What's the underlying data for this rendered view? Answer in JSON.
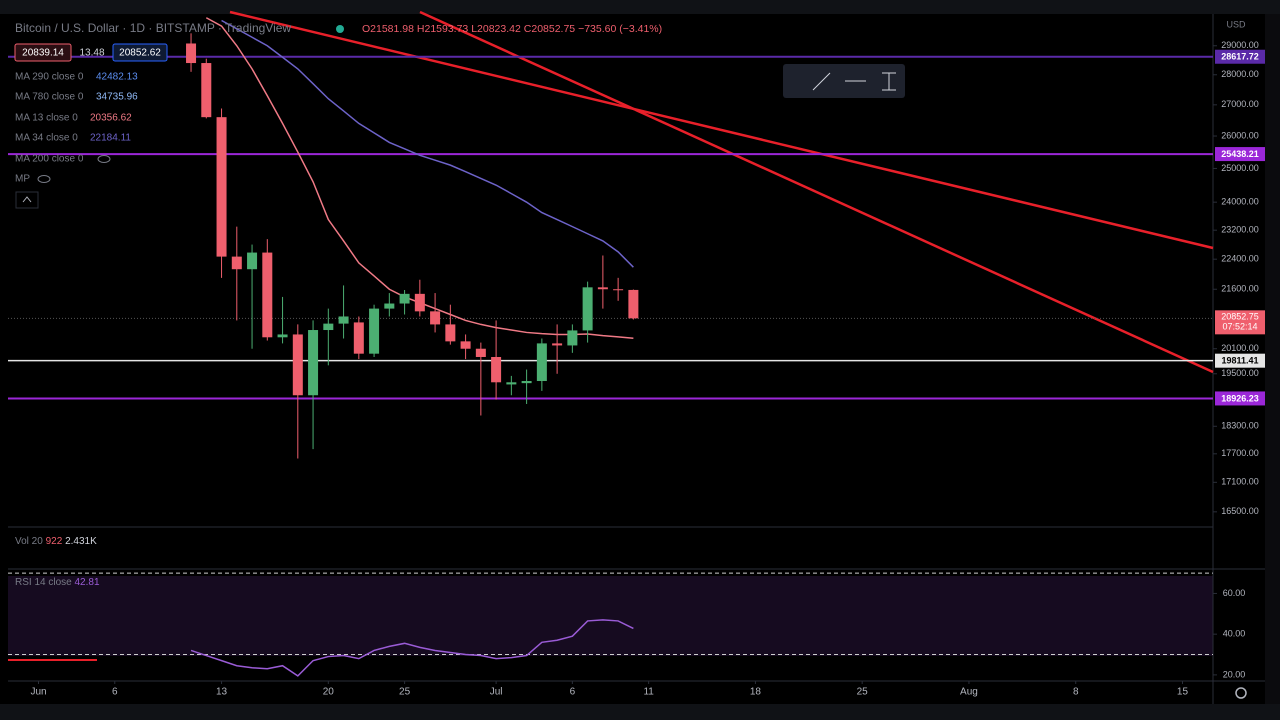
{
  "page": {
    "price_boxes": [
      "20839.14",
      "13.48",
      "20852.62"
    ],
    "volume_label": [
      "Vol 20",
      "922",
      "2.431K"
    ],
    "currency": "USD",
    "mp_label": "MP",
    "other_indicators": [
      {
        "name": "MA 290 close 0",
        "value": 42482.13,
        "color": "#5b8def"
      },
      {
        "name": "MA 780 close 0",
        "value": 34735.96,
        "color": "#8fb8f5"
      },
      {
        "name": "MA 200 close 0",
        "color": "#787b86"
      }
    ]
  },
  "chart_data": [
    {
      "type": "candlestick",
      "title": "Bitcoin / U.S. Dollar · 1D · BITSTAMP · TradingView",
      "ohlc": [
        "O21581.98",
        "H21593.73",
        "L20823.42",
        "C20852.75",
        "−735.60 (−3.41%)"
      ],
      "x": [
        "Jun 11",
        "Jun 12",
        "Jun 13",
        "Jun 14",
        "Jun 15",
        "Jun 16",
        "Jun 17",
        "Jun 18",
        "Jun 19",
        "Jun 20",
        "Jun 21",
        "Jun 22",
        "Jun 23",
        "Jun 24",
        "Jun 25",
        "Jun 26",
        "Jun 27",
        "Jun 28",
        "Jun 29",
        "Jun 30",
        "Jul 1",
        "Jul 2",
        "Jul 3",
        "Jul 4",
        "Jul 5",
        "Jul 6",
        "Jul 7",
        "Jul 8",
        "Jul 9",
        "Jul 10"
      ],
      "open": [
        29080,
        28400,
        26600,
        22470,
        22130,
        22580,
        20380,
        20450,
        19000,
        20560,
        20720,
        20750,
        19980,
        21100,
        21230,
        21480,
        21030,
        20700,
        20280,
        20100,
        19900,
        19250,
        19280,
        19330,
        20230,
        20180,
        20550,
        21650,
        21600,
        21581.98
      ],
      "high": [
        29440,
        28550,
        26880,
        23300,
        22800,
        22950,
        21400,
        20700,
        20800,
        21100,
        21700,
        20900,
        21200,
        21500,
        21580,
        21850,
        21500,
        21200,
        20450,
        20250,
        20800,
        19450,
        19600,
        20350,
        20700,
        20700,
        21800,
        22500,
        21900,
        21593.73
      ],
      "low": [
        28100,
        26560,
        21900,
        20800,
        20100,
        20300,
        20230,
        17600,
        17800,
        19700,
        20350,
        19850,
        19900,
        20900,
        20950,
        20900,
        20500,
        20200,
        19850,
        18540,
        18900,
        19000,
        18800,
        19100,
        19500,
        20000,
        20250,
        21100,
        21300,
        20823.42
      ],
      "close": [
        28400,
        26600,
        22470,
        22130,
        22580,
        20380,
        20450,
        19000,
        20560,
        20720,
        20900,
        19980,
        21100,
        21230,
        21480,
        21030,
        20700,
        20280,
        20100,
        19900,
        19300,
        19300,
        19330,
        20230,
        20180,
        20550,
        21650,
        21600,
        21590,
        20852.75
      ],
      "up_color": "#4caf72",
      "down_color": "#ef5f6d",
      "series": [
        {
          "name": "MA 13 close 0",
          "color": "#f07a86",
          "values": [
            null,
            30000,
            29700,
            29000,
            28200,
            27300,
            26400,
            25500,
            24600,
            23500,
            22900,
            22300,
            21950,
            21600,
            21400,
            21250,
            21100,
            20950,
            20800,
            20700,
            20620,
            20560,
            20500,
            20470,
            20450,
            20450,
            20460,
            20420,
            20390,
            20356.62
          ]
        },
        {
          "name": "MA 34 close 0",
          "color": "#6d63c9",
          "values": [
            null,
            null,
            29900,
            29600,
            29300,
            29000,
            28600,
            28200,
            27700,
            27200,
            26800,
            26400,
            26100,
            25800,
            25600,
            25400,
            25250,
            25100,
            24900,
            24700,
            24500,
            24250,
            24000,
            23700,
            23500,
            23300,
            23100,
            22900,
            22600,
            22184.11
          ]
        }
      ],
      "levels": [
        {
          "value": 28617.72,
          "color": "#5a2aa8"
        },
        {
          "value": 25438.21,
          "color": "#9b27d8"
        },
        {
          "value": 19811.41,
          "color": "#e6e6e6"
        },
        {
          "value": 18926.23,
          "color": "#9b27d8"
        }
      ],
      "last_price": 20852.75,
      "countdown": "07:52:14",
      "log_scale": true,
      "grid": false,
      "ylim": [
        16200,
        30100
      ],
      "xlim": [
        "May 30",
        "Aug 17"
      ],
      "yticks": [
        {
          "value": 29000,
          "label": "29000.00"
        },
        {
          "value": 28000,
          "label": "28000.00"
        },
        {
          "value": 27000,
          "label": "27000.00"
        },
        {
          "value": 26000,
          "label": "26000.00"
        },
        {
          "value": 25000,
          "label": "25000.00"
        },
        {
          "value": 24000,
          "label": "24000.00"
        },
        {
          "value": 23200,
          "label": "23200.00"
        },
        {
          "value": 22400,
          "label": "22400.00"
        },
        {
          "value": 21600,
          "label": "21600.00"
        },
        {
          "value": 20100,
          "label": "20100.00"
        },
        {
          "value": 19500,
          "label": "19500.00"
        },
        {
          "value": 18300,
          "label": "18300.00"
        },
        {
          "value": 17700,
          "label": "17700.00"
        },
        {
          "value": 17100,
          "label": "17100.00"
        },
        {
          "value": 16500,
          "label": "16500.00"
        }
      ],
      "xticks": [
        {
          "value": "Jun 1",
          "label": "Jun"
        },
        {
          "value": "Jun 6",
          "label": "6"
        },
        {
          "value": "Jun 13",
          "label": "13"
        },
        {
          "value": "Jun 20",
          "label": "20"
        },
        {
          "value": "Jun 25",
          "label": "25"
        },
        {
          "value": "Jul 1",
          "label": "Jul"
        },
        {
          "value": "Jul 6",
          "label": "6"
        },
        {
          "value": "Jul 11",
          "label": "11"
        },
        {
          "value": "Jul 18",
          "label": "18"
        },
        {
          "value": "Jul 25",
          "label": "25"
        },
        {
          "value": "Aug 1",
          "label": "Aug"
        },
        {
          "value": "Aug 8",
          "label": "8"
        },
        {
          "value": "Aug 15",
          "label": "15"
        }
      ]
    },
    {
      "type": "line",
      "title": "RSI 14 close",
      "color": "#9a5cd6",
      "values": [
        32,
        29.5,
        27,
        24.5,
        23.5,
        23,
        24.5,
        19.5,
        27,
        29,
        29.5,
        28,
        32,
        34,
        35.5,
        33.5,
        32,
        31,
        30,
        29.5,
        28,
        28.5,
        29.5,
        36,
        37,
        39,
        46.5,
        47,
        46.5,
        42.81
      ],
      "band": [
        30,
        70
      ],
      "ylim": [
        17,
        72
      ],
      "yticks": [
        {
          "value": 60,
          "label": "60.00"
        },
        {
          "value": 40,
          "label": "40.00"
        },
        {
          "value": 20,
          "label": "20.00"
        }
      ]
    }
  ]
}
